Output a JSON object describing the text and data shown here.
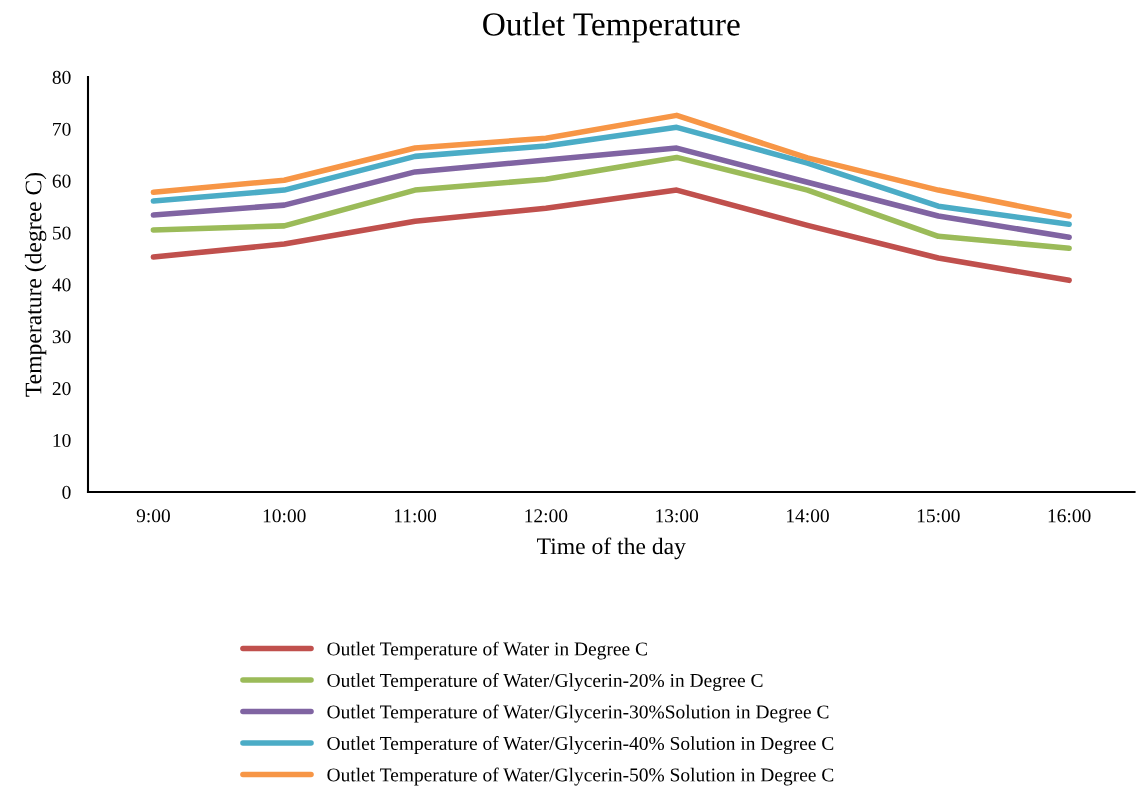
{
  "chart_data": {
    "type": "line",
    "title": "Outlet Temperature",
    "xlabel": "Time of the day",
    "ylabel": "Temperature (degree C)",
    "categories": [
      "9:00",
      "10:00",
      "11:00",
      "12:00",
      "13:00",
      "14:00",
      "15:00",
      "16:00"
    ],
    "ylim": [
      0,
      80
    ],
    "yticks": [
      0,
      10,
      20,
      30,
      40,
      50,
      60,
      70,
      80
    ],
    "grid": false,
    "legend": "bottom",
    "marker": "none",
    "line_style": "solid",
    "series": [
      {
        "name": "Outlet Temperature of Water in Degree C",
        "color": "#c0504d",
        "values": [
          45.3,
          47.8,
          52.2,
          54.7,
          58.2,
          51.4,
          45.1,
          40.8
        ]
      },
      {
        "name": "Outlet Temperature of Water/Glycerin-20% in Degree C",
        "color": "#9bbb59",
        "values": [
          50.5,
          51.3,
          58.2,
          60.3,
          64.5,
          58.2,
          49.3,
          47.0
        ]
      },
      {
        "name": "Outlet Temperature of Water/Glycerin-30%Solution in Degree C",
        "color": "#8064a2",
        "values": [
          53.4,
          55.3,
          61.7,
          64.0,
          66.3,
          59.7,
          53.2,
          49.1
        ]
      },
      {
        "name": "Outlet Temperature of Water/Glycerin-40% Solution in Degree C",
        "color": "#4bacc6",
        "values": [
          56.1,
          58.2,
          64.7,
          66.7,
          70.3,
          63.4,
          55.1,
          51.6
        ]
      },
      {
        "name": "Outlet Temperature of Water/Glycerin-50% Solution in Degree C",
        "color": "#f79646",
        "values": [
          57.8,
          60.1,
          66.3,
          68.2,
          72.6,
          64.4,
          58.2,
          53.2
        ]
      }
    ]
  }
}
